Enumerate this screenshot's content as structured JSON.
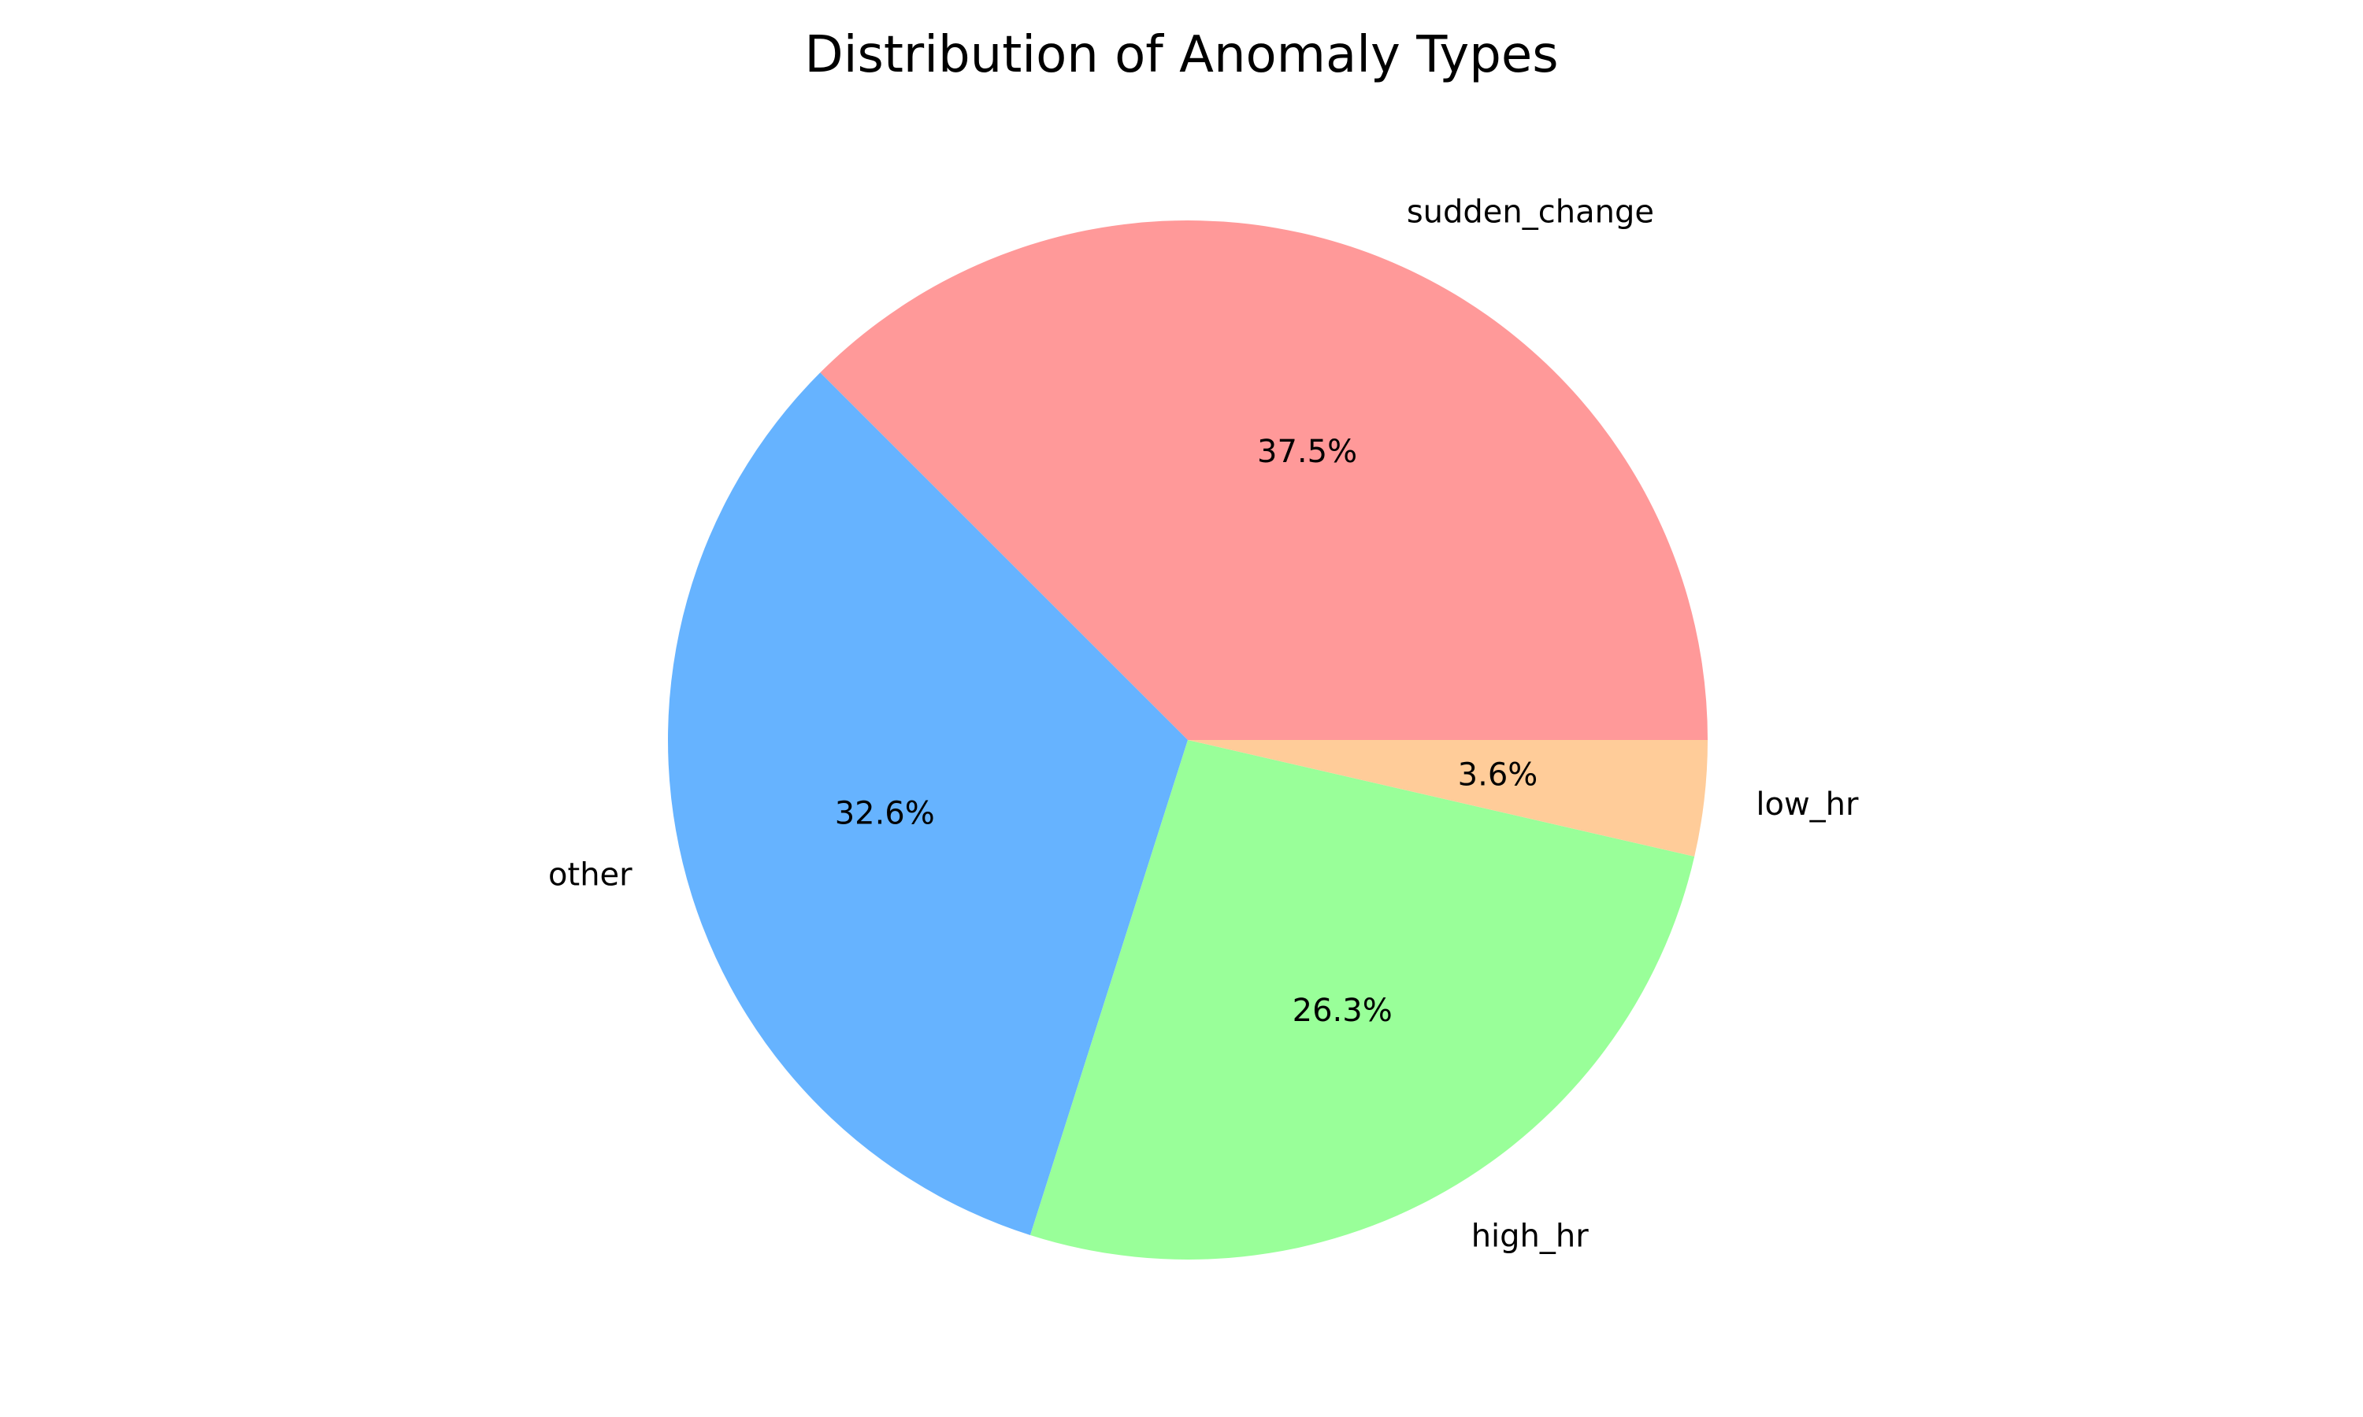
{
  "chart_data": {
    "type": "pie",
    "title": "Distribution of Anomaly Types",
    "start_angle_deg": 0,
    "direction": "counterclockwise",
    "slices": [
      {
        "label": "sudden_change",
        "percent": 37.5,
        "percent_label": "37.5%",
        "color": "#ff9999"
      },
      {
        "label": "other",
        "percent": 32.6,
        "percent_label": "32.6%",
        "color": "#66b3ff"
      },
      {
        "label": "high_hr",
        "percent": 26.3,
        "percent_label": "26.3%",
        "color": "#99ff99"
      },
      {
        "label": "low_hr",
        "percent": 3.6,
        "percent_label": "3.6%",
        "color": "#ffcc99"
      }
    ]
  }
}
